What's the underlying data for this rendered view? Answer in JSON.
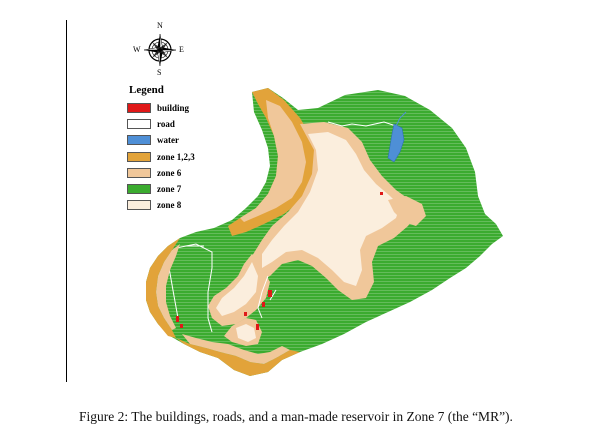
{
  "compass": {
    "north": "N",
    "south": "S",
    "east": "E",
    "west": "W"
  },
  "legend": {
    "title": "Legend",
    "items": [
      {
        "label": "building",
        "color": "#e01818"
      },
      {
        "label": "road",
        "color": "#ffffff"
      },
      {
        "label": "water",
        "color": "#4e8fd6"
      },
      {
        "label": "zone 1,2,3",
        "color": "#e2a33a"
      },
      {
        "label": "zone 6",
        "color": "#f0c79a"
      },
      {
        "label": "zone 7",
        "color": "#3bab2f"
      },
      {
        "label": "zone 8",
        "color": "#fbeedd"
      }
    ]
  },
  "caption": "Figure 2: The buildings, roads, and a man-made reservoir in Zone 7 (the “MR”)."
}
